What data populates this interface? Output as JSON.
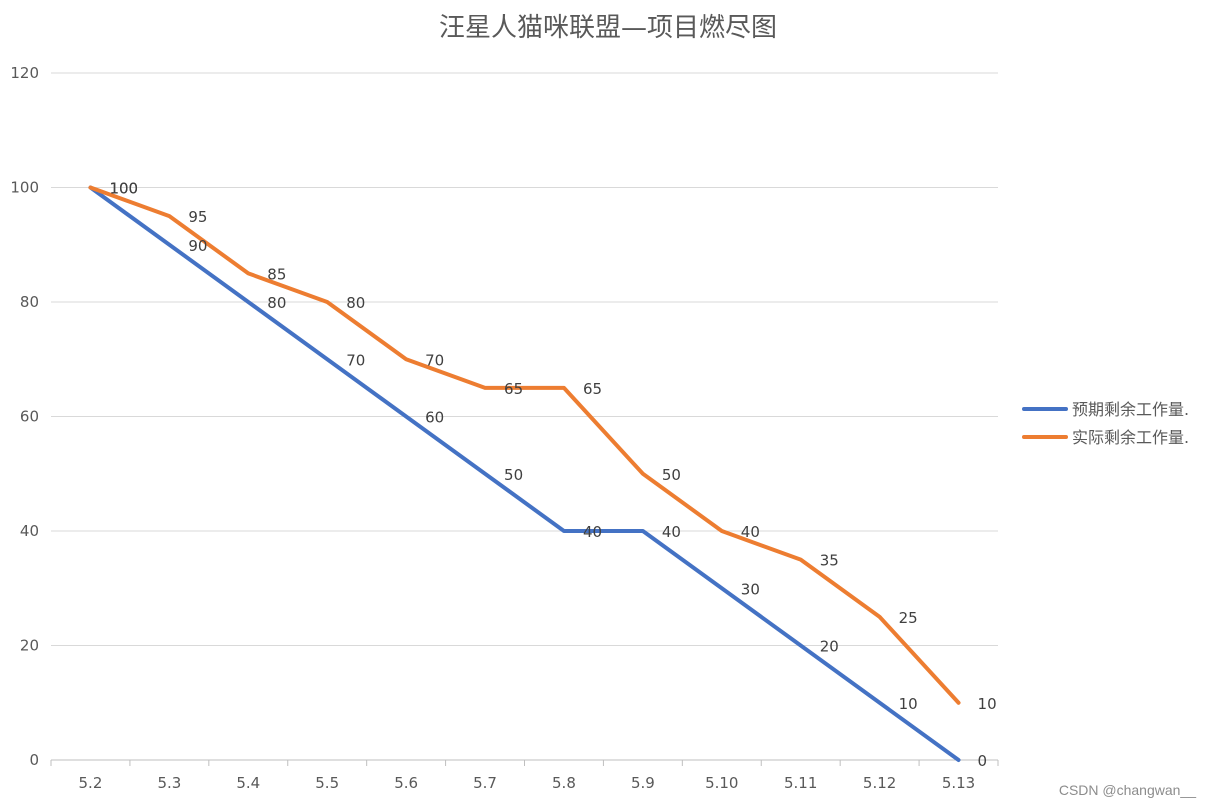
{
  "chart_data": {
    "type": "line",
    "title": "汪星人猫咪联盟—项目燃尽图",
    "categories": [
      "5.2",
      "5.3",
      "5.4",
      "5.5",
      "5.6",
      "5.7",
      "5.8",
      "5.9",
      "5.10",
      "5.11",
      "5.12",
      "5.13"
    ],
    "series": [
      {
        "name": "预期剩余工作量.",
        "color": "#4472C4",
        "values": [
          100,
          90,
          80,
          70,
          60,
          50,
          40,
          40,
          30,
          20,
          10,
          0
        ]
      },
      {
        "name": "实际剩余工作量.",
        "color": "#ED7D31",
        "values": [
          100,
          95,
          85,
          80,
          70,
          65,
          65,
          50,
          40,
          35,
          25,
          10
        ]
      }
    ],
    "ylim": [
      0,
      120
    ],
    "yticks": [
      0,
      20,
      40,
      60,
      80,
      100,
      120
    ],
    "grid": true,
    "legend": "right",
    "data_labels": true
  },
  "watermark": "CSDN @changwan__"
}
